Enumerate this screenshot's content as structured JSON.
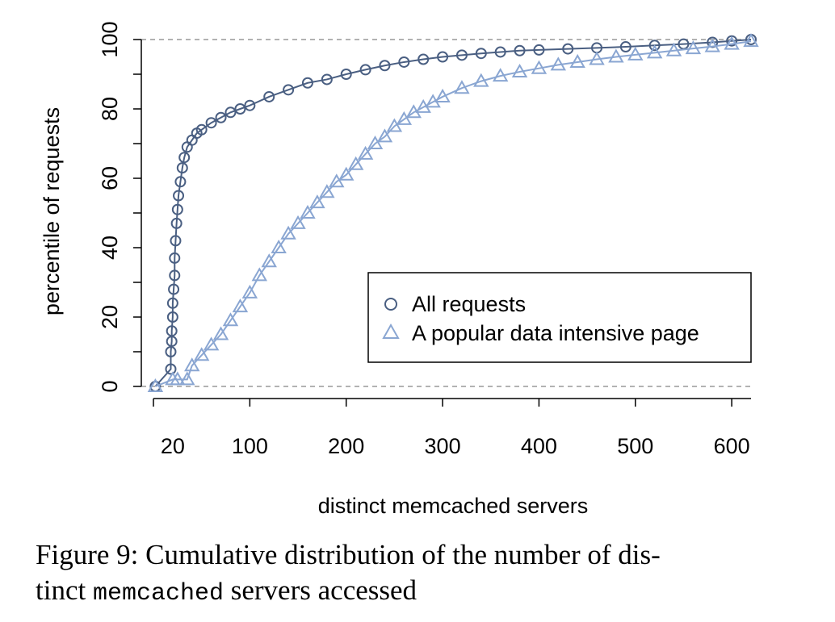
{
  "chart_data": {
    "type": "scatter",
    "xlabel": "distinct memcached servers",
    "ylabel": "percentile of requests",
    "xlim": [
      0,
      620
    ],
    "ylim": [
      0,
      100
    ],
    "x_ticks": [
      20,
      100,
      200,
      300,
      400,
      500,
      600
    ],
    "y_ticks": [
      0,
      20,
      40,
      60,
      80,
      100
    ],
    "reference_lines_y": [
      0,
      100
    ],
    "legend_position": "right",
    "series": [
      {
        "name": "All requests",
        "marker": "circle",
        "color": "#4a5f82",
        "x": [
          2,
          18,
          18,
          19,
          19,
          20,
          20,
          21,
          22,
          22,
          23,
          24,
          25,
          26,
          28,
          30,
          32,
          35,
          40,
          45,
          50,
          60,
          70,
          80,
          90,
          100,
          120,
          140,
          160,
          180,
          200,
          220,
          240,
          260,
          280,
          300,
          320,
          340,
          360,
          380,
          400,
          430,
          460,
          490,
          520,
          550,
          580,
          600,
          620
        ],
        "y": [
          0,
          5,
          10,
          13,
          16,
          20,
          24,
          28,
          32,
          37,
          42,
          47,
          51,
          55,
          59,
          63,
          66,
          69,
          71,
          73,
          74,
          76,
          77.5,
          79,
          80,
          81,
          83.5,
          85.5,
          87.5,
          88.5,
          90,
          91.3,
          92.5,
          93.5,
          94.3,
          95,
          95.5,
          96,
          96.4,
          96.8,
          97,
          97.3,
          97.6,
          97.9,
          98.3,
          98.7,
          99.2,
          99.6,
          100
        ]
      },
      {
        "name": "A popular data intensive page",
        "marker": "triangle",
        "color": "#8aa6d2",
        "x": [
          2,
          20,
          25,
          35,
          40,
          50,
          60,
          70,
          80,
          90,
          100,
          110,
          120,
          130,
          140,
          150,
          160,
          170,
          180,
          190,
          200,
          210,
          220,
          230,
          240,
          250,
          260,
          270,
          280,
          290,
          300,
          320,
          340,
          360,
          380,
          400,
          420,
          440,
          460,
          480,
          500,
          520,
          540,
          560,
          580,
          600,
          620
        ],
        "y": [
          0,
          2,
          2,
          2,
          6,
          9,
          12,
          15,
          19,
          23,
          27,
          32,
          36,
          40,
          44,
          47,
          50,
          53,
          56,
          59,
          61,
          64,
          67,
          70,
          72,
          75,
          77,
          79,
          80.5,
          82,
          83.5,
          86,
          88,
          89.5,
          90.7,
          91.7,
          92.7,
          93.5,
          94.3,
          95,
          95.6,
          96.2,
          96.8,
          97.4,
          98,
          98.7,
          99.5
        ]
      }
    ]
  },
  "caption": {
    "part1": "Figure 9: Cumulative distribution of the number of dis-",
    "part2": "tinct ",
    "code": "memcached",
    "part3": " servers accessed"
  }
}
